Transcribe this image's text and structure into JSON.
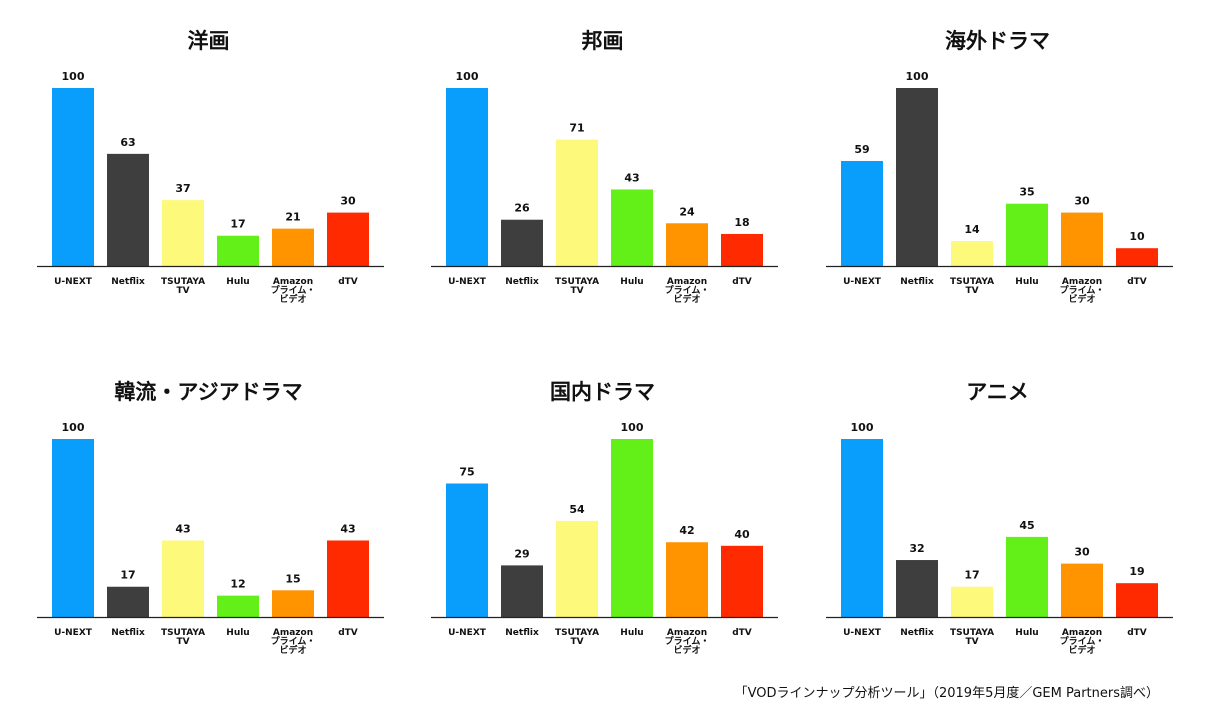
{
  "chart_data": [
    {
      "type": "bar",
      "title": "洋画",
      "categories": [
        "U-NEXT",
        "Netflix",
        "TSUTAYA TV",
        "Hulu",
        "Amazon プライム・ビデオ",
        "dTV"
      ],
      "values": [
        100,
        63,
        37,
        17,
        21,
        30
      ],
      "ylim": [
        0,
        100
      ]
    },
    {
      "type": "bar",
      "title": "邦画",
      "categories": [
        "U-NEXT",
        "Netflix",
        "TSUTAYA TV",
        "Hulu",
        "Amazon プライム・ビデオ",
        "dTV"
      ],
      "values": [
        100,
        26,
        71,
        43,
        24,
        18
      ],
      "ylim": [
        0,
        100
      ]
    },
    {
      "type": "bar",
      "title": "海外ドラマ",
      "categories": [
        "U-NEXT",
        "Netflix",
        "TSUTAYA TV",
        "Hulu",
        "Amazon プライム・ビデオ",
        "dTV"
      ],
      "values": [
        59,
        100,
        14,
        35,
        30,
        10
      ],
      "ylim": [
        0,
        100
      ]
    },
    {
      "type": "bar",
      "title": "韓流・アジアドラマ",
      "categories": [
        "U-NEXT",
        "Netflix",
        "TSUTAYA TV",
        "Hulu",
        "Amazon プライム・ビデオ",
        "dTV"
      ],
      "values": [
        100,
        17,
        43,
        12,
        15,
        43
      ],
      "ylim": [
        0,
        100
      ]
    },
    {
      "type": "bar",
      "title": "国内ドラマ",
      "categories": [
        "U-NEXT",
        "Netflix",
        "TSUTAYA TV",
        "Hulu",
        "Amazon プライム・ビデオ",
        "dTV"
      ],
      "values": [
        75,
        29,
        54,
        100,
        42,
        40
      ],
      "ylim": [
        0,
        100
      ]
    },
    {
      "type": "bar",
      "title": "アニメ",
      "categories": [
        "U-NEXT",
        "Netflix",
        "TSUTAYA TV",
        "Hulu",
        "Amazon プライム・ビデオ",
        "dTV"
      ],
      "values": [
        100,
        32,
        17,
        45,
        30,
        19
      ],
      "ylim": [
        0,
        100
      ]
    }
  ],
  "category_labels": [
    [
      "U-NEXT"
    ],
    [
      "Netflix"
    ],
    [
      "TSUTAYA",
      "TV"
    ],
    [
      "Hulu"
    ],
    [
      "Amazon",
      "プライム・",
      "ビデオ"
    ],
    [
      "dTV"
    ]
  ],
  "colors": [
    "#0a9efc",
    "#3e3e3e",
    "#fdf97a",
    "#63ef18",
    "#ff9300",
    "#ff2a00"
  ],
  "footnote": "「VODラインナップ分析ツール」（2019年5月度／GEM Partners調べ）"
}
